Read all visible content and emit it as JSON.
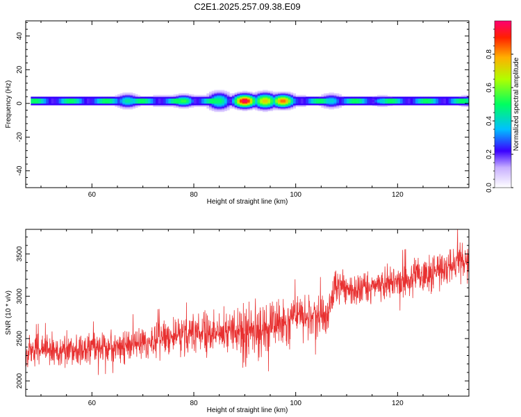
{
  "title": "C2E1.2025.257.09.38.E09",
  "colors": {
    "trace": "#e83030",
    "axis": "#000000"
  },
  "chart_data": [
    {
      "type": "heatmap",
      "name": "spectrogram",
      "xlabel": "Height of straight line (km)",
      "ylabel": "Frequency (Hz)",
      "xlim": [
        47,
        134
      ],
      "ylim": [
        -50,
        49
      ],
      "xticks": [
        60,
        80,
        100,
        120
      ],
      "xtick_labels": [
        "60",
        "80",
        "100",
        "120"
      ],
      "yticks": [
        -40,
        -20,
        0,
        20,
        40
      ],
      "ytick_labels": [
        "-40",
        "-20",
        "0",
        "20",
        "40"
      ],
      "band": {
        "center_hz": 1.5,
        "core_halfwidth_hz": 1.5,
        "x_start": 48,
        "x_end": 134
      },
      "energy_peaks": [
        {
          "x": 67,
          "halfwidth_hz": 3,
          "amp": 0.45
        },
        {
          "x": 78,
          "halfwidth_hz": 2.5,
          "amp": 0.55
        },
        {
          "x": 85,
          "halfwidth_hz": 4,
          "amp": 0.5
        },
        {
          "x": 90,
          "halfwidth_hz": 3,
          "amp": 1.0
        },
        {
          "x": 94,
          "halfwidth_hz": 3.5,
          "amp": 0.75
        },
        {
          "x": 97.5,
          "halfwidth_hz": 3,
          "amp": 0.85
        },
        {
          "x": 107,
          "halfwidth_hz": 3,
          "amp": 0.4
        },
        {
          "x": 117,
          "halfwidth_hz": 2,
          "amp": 0.4
        },
        {
          "x": 134,
          "halfwidth_hz": 2,
          "amp": 0.45
        }
      ],
      "colorbar": {
        "label": "Normalized spectral amplitude",
        "range": [
          0,
          1
        ],
        "ticks": [
          0.0,
          0.2,
          0.4,
          0.6,
          0.8
        ],
        "tick_labels": [
          "0.0",
          "0.2",
          "0.4",
          "0.6",
          "0.8"
        ]
      }
    },
    {
      "type": "line",
      "name": "snr",
      "xlabel": "Height of straight line (km)",
      "ylabel": "SNR (10 * v/v)",
      "xlim": [
        47,
        134
      ],
      "ylim": [
        1820,
        3790
      ],
      "xticks": [
        60,
        80,
        100,
        120
      ],
      "xtick_labels": [
        "60",
        "80",
        "100",
        "120"
      ],
      "yticks": [
        2000,
        2500,
        3000,
        3500
      ],
      "ytick_labels": [
        "2000",
        "2500",
        "3000",
        "3500"
      ],
      "series": [
        {
          "name": "SNR",
          "x": [
            47,
            50,
            55,
            60,
            65,
            70,
            75,
            80,
            85,
            88,
            89.5,
            90,
            91,
            95,
            100,
            105,
            106.5,
            107.5,
            110,
            115,
            120,
            125,
            130,
            134
          ],
          "mean": [
            2330,
            2360,
            2380,
            2380,
            2420,
            2450,
            2500,
            2550,
            2580,
            2620,
            2550,
            2500,
            2560,
            2660,
            2720,
            2780,
            2780,
            3130,
            3080,
            3120,
            3180,
            3240,
            3330,
            3440
          ],
          "spread": [
            200,
            200,
            200,
            200,
            200,
            230,
            230,
            250,
            280,
            300,
            450,
            450,
            400,
            330,
            300,
            280,
            280,
            230,
            230,
            220,
            220,
            230,
            250,
            300
          ]
        }
      ]
    }
  ]
}
